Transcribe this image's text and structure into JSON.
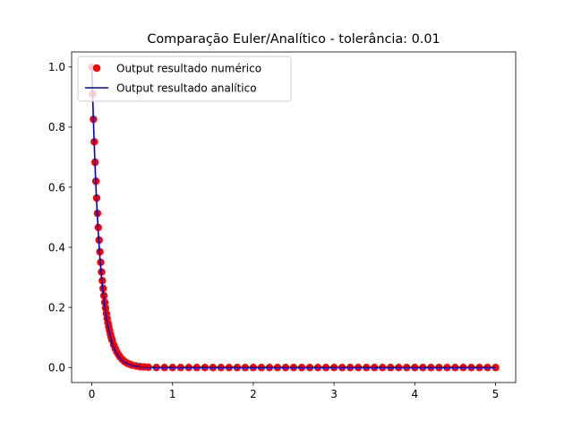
{
  "chart_data": {
    "type": "line",
    "title": "Comparação Euler/Analítico - tolerância: 0.01",
    "xlabel": "",
    "ylabel": "",
    "xlim": [
      -0.25,
      5.25
    ],
    "ylim": [
      -0.05,
      1.05
    ],
    "xticks": [
      "0",
      "1",
      "2",
      "3",
      "4",
      "5"
    ],
    "yticks": [
      "0.0",
      "0.2",
      "0.4",
      "0.6",
      "0.8",
      "1.0"
    ],
    "legend_position": "upper-left",
    "grid": false,
    "series": [
      {
        "name": "Output resultado numérico",
        "style": "scatter",
        "color": "#ff0000",
        "x": [
          0.0,
          0.01,
          0.02,
          0.03,
          0.04,
          0.05,
          0.06,
          0.07,
          0.08,
          0.09,
          0.1,
          0.11,
          0.12,
          0.13,
          0.14,
          0.15,
          0.16,
          0.17,
          0.18,
          0.19,
          0.2,
          0.21,
          0.22,
          0.23,
          0.24,
          0.25,
          0.27,
          0.29,
          0.31,
          0.33,
          0.35,
          0.38,
          0.41,
          0.44,
          0.47,
          0.5,
          0.55,
          0.6,
          0.65,
          0.7,
          0.8,
          0.9,
          1.0,
          1.1,
          1.2,
          1.3,
          1.4,
          1.5,
          1.6,
          1.7,
          1.8,
          1.9,
          2.0,
          2.1,
          2.2,
          2.3,
          2.4,
          2.5,
          2.6,
          2.7,
          2.8,
          2.9,
          3.0,
          3.1,
          3.2,
          3.3,
          3.4,
          3.5,
          3.6,
          3.7,
          3.8,
          3.9,
          4.0,
          4.1,
          4.2,
          4.3,
          4.4,
          4.5,
          4.6,
          4.7,
          4.8,
          4.9,
          5.0
        ],
        "y": [
          1.0,
          0.91,
          0.826,
          0.751,
          0.683,
          0.62,
          0.564,
          0.513,
          0.466,
          0.424,
          0.385,
          0.35,
          0.318,
          0.289,
          0.263,
          0.239,
          0.217,
          0.198,
          0.18,
          0.163,
          0.148,
          0.135,
          0.123,
          0.111,
          0.101,
          0.092,
          0.076,
          0.063,
          0.052,
          0.043,
          0.035,
          0.026,
          0.019,
          0.014,
          0.011,
          0.008,
          0.005,
          0.003,
          0.002,
          0.001,
          0.0,
          0.0,
          0.0,
          0.0,
          0.0,
          0.0,
          0.0,
          0.0,
          0.0,
          0.0,
          0.0,
          0.0,
          0.0,
          0.0,
          0.0,
          0.0,
          0.0,
          0.0,
          0.0,
          0.0,
          0.0,
          0.0,
          0.0,
          0.0,
          0.0,
          0.0,
          0.0,
          0.0,
          0.0,
          0.0,
          0.0,
          0.0,
          0.0,
          0.0,
          0.0,
          0.0,
          0.0,
          0.0,
          0.0,
          0.0,
          0.0,
          0.0,
          0.0
        ]
      },
      {
        "name": "Output resultado analítico",
        "style": "line",
        "color": "#0000cc",
        "x": [
          0.0,
          0.02,
          0.04,
          0.06,
          0.08,
          0.1,
          0.12,
          0.14,
          0.16,
          0.18,
          0.2,
          0.25,
          0.3,
          0.35,
          0.4,
          0.5,
          0.6,
          0.7,
          0.8,
          1.0,
          2.0,
          3.0,
          4.0,
          5.0
        ],
        "y": [
          1.0,
          0.819,
          0.67,
          0.549,
          0.449,
          0.368,
          0.301,
          0.247,
          0.202,
          0.165,
          0.135,
          0.082,
          0.05,
          0.03,
          0.018,
          0.007,
          0.002,
          0.001,
          0.0,
          0.0,
          0.0,
          0.0,
          0.0,
          0.0
        ]
      }
    ]
  }
}
